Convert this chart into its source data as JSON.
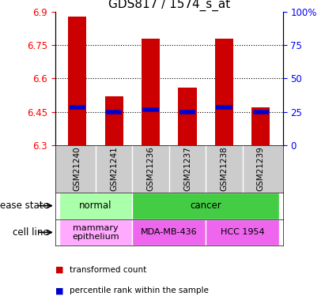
{
  "title": "GDS817 / 1574_s_at",
  "samples": [
    "GSM21240",
    "GSM21241",
    "GSM21236",
    "GSM21237",
    "GSM21238",
    "GSM21239"
  ],
  "bar_heights": [
    6.88,
    6.52,
    6.78,
    6.56,
    6.78,
    6.47
  ],
  "blue_markers": [
    6.47,
    6.45,
    6.46,
    6.45,
    6.47,
    6.45
  ],
  "ylim": [
    6.3,
    6.9
  ],
  "yticks_left": [
    6.3,
    6.45,
    6.6,
    6.75,
    6.9
  ],
  "yticks_right": [
    0,
    25,
    50,
    75,
    100
  ],
  "yticks_right_vals": [
    6.3,
    6.45,
    6.6,
    6.75,
    6.9
  ],
  "grid_lines": [
    6.45,
    6.6,
    6.75
  ],
  "bar_color": "#cc0000",
  "blue_color": "#0000cc",
  "bar_width": 0.5,
  "disease_groups": [
    {
      "label": "normal",
      "cols": [
        0,
        1
      ],
      "color": "#aaffaa"
    },
    {
      "label": "cancer",
      "cols": [
        2,
        3,
        4,
        5
      ],
      "color": "#44cc44"
    }
  ],
  "cell_groups": [
    {
      "label": "mammary\nepithelium",
      "cols": [
        0,
        1
      ],
      "color": "#ffaaff"
    },
    {
      "label": "MDA-MB-436",
      "cols": [
        2,
        3
      ],
      "color": "#ee66ee"
    },
    {
      "label": "HCC 1954",
      "cols": [
        4,
        5
      ],
      "color": "#ee66ee"
    }
  ],
  "legend_items": [
    {
      "label": "transformed count",
      "color": "#cc0000"
    },
    {
      "label": "percentile rank within the sample",
      "color": "#0000cc"
    }
  ],
  "disease_label": "disease state",
  "cell_label": "cell line",
  "title_fontsize": 11,
  "tick_fontsize": 8.5,
  "label_fontsize": 8.5,
  "sample_fontsize": 7.5
}
